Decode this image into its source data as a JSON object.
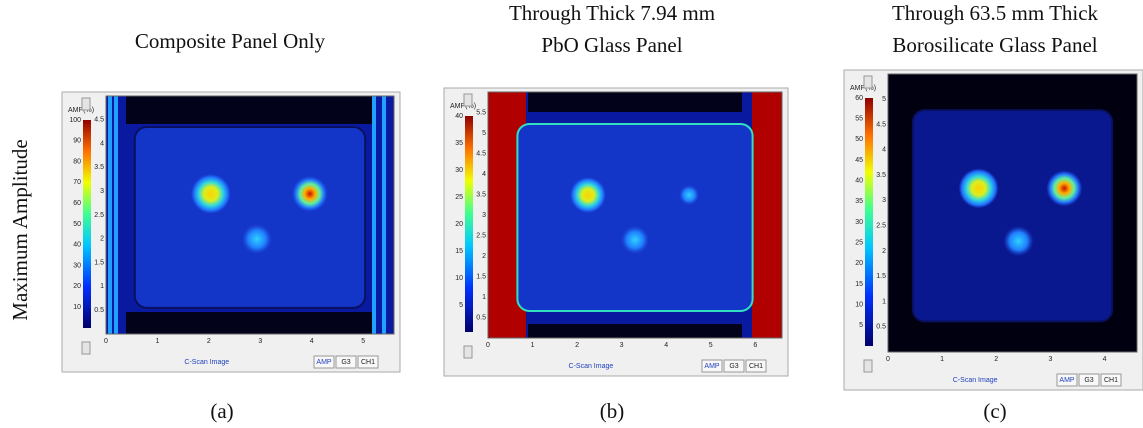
{
  "side_label": "Maximum  Amplitude",
  "panels": [
    {
      "title": [
        "Composite Panel Only"
      ],
      "caption": "(a)",
      "colorbar": {
        "unit": "AMP(%)",
        "ticks": [
          100,
          90,
          80,
          70,
          60,
          50,
          40,
          30,
          20,
          10
        ]
      },
      "y_ticks": [
        4.5,
        4,
        3.5,
        3,
        2.5,
        2,
        1.5,
        1,
        0.5
      ],
      "x_ticks": [
        0,
        1,
        2,
        3,
        4,
        5
      ],
      "footer": {
        "label": "C-Scan Image",
        "buttons": [
          "AMP",
          "G3",
          "CH1"
        ]
      }
    },
    {
      "title": [
        "Through Thick 7.94 mm",
        "PbO Glass Panel"
      ],
      "caption": "(b)",
      "colorbar": {
        "unit": "AMP(%)",
        "ticks": [
          40,
          35,
          30,
          25,
          20,
          15,
          10,
          5
        ]
      },
      "y_ticks": [
        5.5,
        5,
        4.5,
        4,
        3.5,
        3,
        2.5,
        2,
        1.5,
        1,
        0.5
      ],
      "x_ticks": [
        0,
        1,
        2,
        3,
        4,
        5,
        6
      ],
      "footer": {
        "label": "C-Scan Image",
        "buttons": [
          "AMP",
          "G3",
          "CH1"
        ]
      }
    },
    {
      "title": [
        "Through 63.5 mm Thick",
        "Borosilicate Glass Panel"
      ],
      "caption": "(c)",
      "colorbar": {
        "unit": "AMP(%)",
        "ticks": [
          60,
          55,
          50,
          45,
          40,
          35,
          30,
          25,
          20,
          15,
          10,
          5
        ]
      },
      "y_ticks": [
        5,
        4.5,
        4,
        3.5,
        3,
        2.5,
        2,
        1.5,
        1,
        0.5
      ],
      "x_ticks": [
        0,
        1,
        2,
        3,
        4
      ],
      "footer": {
        "label": "C-Scan Image",
        "buttons": [
          "AMP",
          "G3",
          "CH1"
        ]
      }
    }
  ]
}
